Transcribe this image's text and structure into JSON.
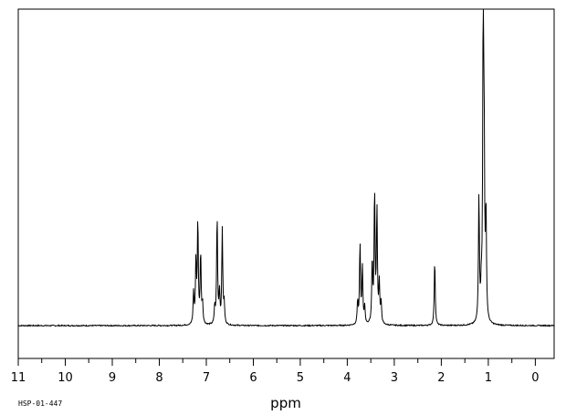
{
  "chart_data": {
    "type": "line",
    "title": "",
    "xlabel": "ppm",
    "ylabel": "",
    "xlim": [
      11,
      -0.4
    ],
    "x_reversed": true,
    "ylim": [
      0,
      1
    ],
    "grid": false,
    "legend": "none",
    "x_ticks": [
      11,
      10,
      9,
      8,
      7,
      6,
      5,
      4,
      3,
      2,
      1,
      0
    ],
    "x_tick_labels": [
      "11",
      "10",
      "9",
      "8",
      "7",
      "6",
      "5",
      "4",
      "3",
      "2",
      "1",
      "0"
    ],
    "series": [
      {
        "peaks": [
          {
            "x": 7.27,
            "y": 0.11
          },
          {
            "x": 7.22,
            "y": 0.22
          },
          {
            "x": 7.18,
            "y": 0.36
          },
          {
            "x": 7.12,
            "y": 0.25
          },
          {
            "x": 7.08,
            "y": 0.07
          },
          {
            "x": 6.82,
            "y": 0.06
          },
          {
            "x": 6.77,
            "y": 0.38
          },
          {
            "x": 6.72,
            "y": 0.11
          },
          {
            "x": 6.66,
            "y": 0.33
          },
          {
            "x": 6.62,
            "y": 0.07
          },
          {
            "x": 3.78,
            "y": 0.08
          },
          {
            "x": 3.73,
            "y": 0.28
          },
          {
            "x": 3.68,
            "y": 0.2
          },
          {
            "x": 3.63,
            "y": 0.06
          },
          {
            "x": 3.47,
            "y": 0.22
          },
          {
            "x": 3.42,
            "y": 0.46
          },
          {
            "x": 3.37,
            "y": 0.4
          },
          {
            "x": 3.32,
            "y": 0.14
          },
          {
            "x": 3.28,
            "y": 0.07
          },
          {
            "x": 2.14,
            "y": 0.23
          },
          {
            "x": 1.2,
            "y": 0.44
          },
          {
            "x": 1.15,
            "y": 0.1
          },
          {
            "x": 1.11,
            "y": 0.98
          },
          {
            "x": 1.09,
            "y": 0.58
          },
          {
            "x": 1.05,
            "y": 0.37
          }
        ]
      }
    ]
  },
  "spectrum_code": "HSP-01-447",
  "colors": {
    "line": "#000000",
    "frame": "#000000",
    "background": "#ffffff"
  }
}
